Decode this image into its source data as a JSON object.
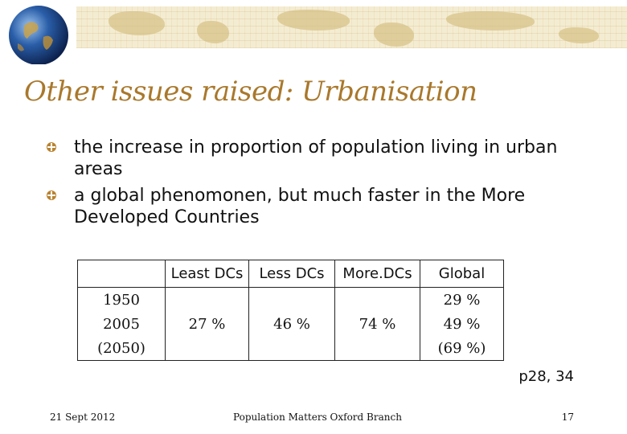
{
  "slide": {
    "title": "Other issues raised: Urbanisation",
    "bullets": [
      "the increase in proportion of population living in urban areas",
      "a global phenomonen, but much faster in the More Developed Countries"
    ],
    "reference": "p28, 34"
  },
  "table": {
    "headers": [
      "",
      "Least DCs",
      "Less DCs",
      "More.DCs",
      "Global"
    ],
    "rows": [
      [
        "1950",
        "",
        "",
        "",
        "29 %"
      ],
      [
        "2005",
        "27 %",
        "46 %",
        "74 %",
        "49 %"
      ],
      [
        "(2050)",
        "",
        "",
        "",
        "(69 %)"
      ]
    ]
  },
  "footer": {
    "date": "21 Sept 2012",
    "organization": "Population Matters Oxford Branch",
    "page_number": "17"
  },
  "colors": {
    "title": "#a9782c",
    "bullet": "#b9822f",
    "map_background": "#f4ecd2"
  },
  "icons": {
    "globe": "globe-icon",
    "bullet": "compass-bullet-icon"
  }
}
